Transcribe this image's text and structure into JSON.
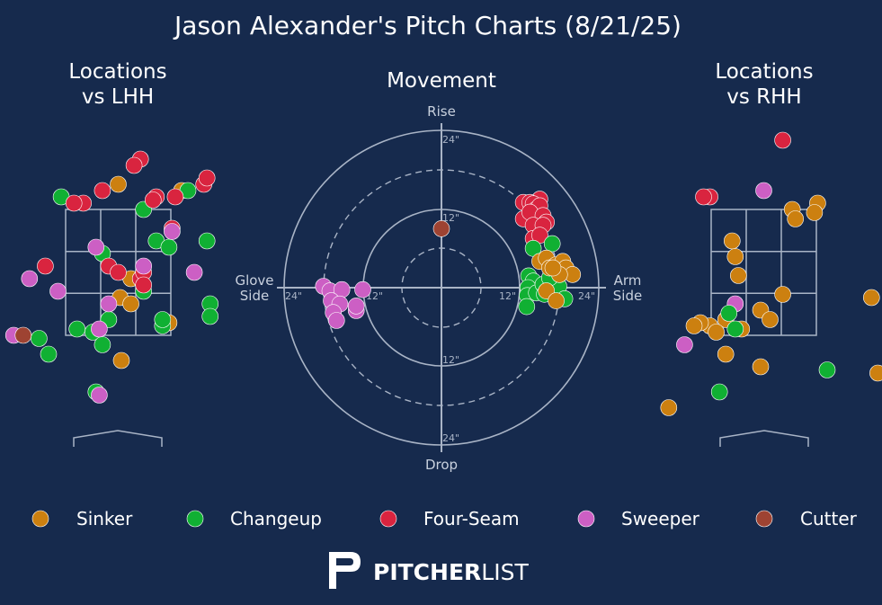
{
  "title": "Jason Alexander's Pitch Charts (8/21/25)",
  "colors": {
    "background": "#162a4d",
    "Sinker": "#cc8010",
    "Changeup": "#10b033",
    "Four-Seam": "#d9243f",
    "Sweeper": "#cc5fc4",
    "Cutter": "#9e4332",
    "guide": "#a9b4c6"
  },
  "brand": {
    "logo_text_bold": "PITCHER",
    "logo_text_light": "LIST"
  },
  "legend": [
    {
      "name": "Sinker"
    },
    {
      "name": "Changeup"
    },
    {
      "name": "Four-Seam"
    },
    {
      "name": "Sweeper"
    },
    {
      "name": "Cutter"
    }
  ],
  "chart_data": [
    {
      "type": "scatter",
      "panel": "lhh",
      "title_line1": "Locations",
      "title_line2": "vs LHH",
      "points": [
        {
          "pitch": "Sinker",
          "x": 0.0,
          "y": 3.9
        },
        {
          "pitch": "Sinker",
          "x": 1.0,
          "y": 3.8
        },
        {
          "pitch": "Sinker",
          "x": 0.2,
          "y": 2.4
        },
        {
          "pitch": "Sinker",
          "x": 0.03,
          "y": 2.1
        },
        {
          "pitch": "Sinker",
          "x": 0.2,
          "y": 2.0
        },
        {
          "pitch": "Sinker",
          "x": 0.8,
          "y": 1.7
        },
        {
          "pitch": "Sinker",
          "x": 0.05,
          "y": 1.1
        },
        {
          "pitch": "Changeup",
          "x": -0.9,
          "y": 3.7
        },
        {
          "pitch": "Changeup",
          "x": 0.4,
          "y": 3.5
        },
        {
          "pitch": "Changeup",
          "x": 1.1,
          "y": 3.8
        },
        {
          "pitch": "Changeup",
          "x": 0.6,
          "y": 3.0
        },
        {
          "pitch": "Changeup",
          "x": 0.8,
          "y": 2.9
        },
        {
          "pitch": "Changeup",
          "x": 1.4,
          "y": 3.0
        },
        {
          "pitch": "Changeup",
          "x": -0.25,
          "y": 2.8
        },
        {
          "pitch": "Changeup",
          "x": -0.15,
          "y": 1.75
        },
        {
          "pitch": "Changeup",
          "x": 0.4,
          "y": 2.2
        },
        {
          "pitch": "Changeup",
          "x": 1.45,
          "y": 2.0
        },
        {
          "pitch": "Changeup",
          "x": -0.4,
          "y": 1.55
        },
        {
          "pitch": "Changeup",
          "x": -0.65,
          "y": 1.6
        },
        {
          "pitch": "Changeup",
          "x": -1.25,
          "y": 1.45
        },
        {
          "pitch": "Changeup",
          "x": -0.25,
          "y": 1.35
        },
        {
          "pitch": "Changeup",
          "x": -1.1,
          "y": 1.2
        },
        {
          "pitch": "Changeup",
          "x": 0.7,
          "y": 1.65
        },
        {
          "pitch": "Changeup",
          "x": 0.7,
          "y": 1.75
        },
        {
          "pitch": "Changeup",
          "x": 1.45,
          "y": 1.8
        },
        {
          "pitch": "Changeup",
          "x": -0.35,
          "y": 0.6
        },
        {
          "pitch": "Four-Seam",
          "x": 0.35,
          "y": 4.3
        },
        {
          "pitch": "Four-Seam",
          "x": 0.25,
          "y": 4.2
        },
        {
          "pitch": "Four-Seam",
          "x": -0.25,
          "y": 3.8
        },
        {
          "pitch": "Four-Seam",
          "x": -0.55,
          "y": 3.6
        },
        {
          "pitch": "Four-Seam",
          "x": -0.7,
          "y": 3.6
        },
        {
          "pitch": "Four-Seam",
          "x": 0.6,
          "y": 3.7
        },
        {
          "pitch": "Four-Seam",
          "x": 0.55,
          "y": 3.65
        },
        {
          "pitch": "Four-Seam",
          "x": 0.9,
          "y": 3.7
        },
        {
          "pitch": "Four-Seam",
          "x": 1.35,
          "y": 3.9
        },
        {
          "pitch": "Four-Seam",
          "x": 1.4,
          "y": 4.0
        },
        {
          "pitch": "Four-Seam",
          "x": 0.85,
          "y": 3.2
        },
        {
          "pitch": "Four-Seam",
          "x": -1.15,
          "y": 2.6
        },
        {
          "pitch": "Four-Seam",
          "x": -0.15,
          "y": 2.6
        },
        {
          "pitch": "Four-Seam",
          "x": 0.0,
          "y": 2.5
        },
        {
          "pitch": "Four-Seam",
          "x": 0.35,
          "y": 2.4
        },
        {
          "pitch": "Four-Seam",
          "x": 0.4,
          "y": 2.5
        },
        {
          "pitch": "Four-Seam",
          "x": 0.4,
          "y": 2.3
        },
        {
          "pitch": "Sweeper",
          "x": 0.85,
          "y": 3.15
        },
        {
          "pitch": "Sweeper",
          "x": -0.35,
          "y": 2.9
        },
        {
          "pitch": "Sweeper",
          "x": 0.4,
          "y": 2.6
        },
        {
          "pitch": "Sweeper",
          "x": 1.2,
          "y": 2.5
        },
        {
          "pitch": "Sweeper",
          "x": -1.4,
          "y": 2.4
        },
        {
          "pitch": "Sweeper",
          "x": -0.95,
          "y": 2.2
        },
        {
          "pitch": "Sweeper",
          "x": -0.15,
          "y": 2.0
        },
        {
          "pitch": "Sweeper",
          "x": -0.3,
          "y": 1.6
        },
        {
          "pitch": "Sweeper",
          "x": -1.65,
          "y": 1.5
        },
        {
          "pitch": "Sweeper",
          "x": -0.3,
          "y": 0.55
        },
        {
          "pitch": "Cutter",
          "x": -1.5,
          "y": 1.5
        }
      ]
    },
    {
      "type": "scatter",
      "panel": "movement",
      "title": "Movement",
      "labels": {
        "top": "Rise",
        "bottom": "Drop",
        "left_line1": "Glove",
        "left_line2": "Side",
        "right_line1": "Arm",
        "right_line2": "Side"
      },
      "rings": [
        "12\"",
        "24\""
      ],
      "xlim": [
        -24,
        24
      ],
      "ylim": [
        -24,
        24
      ],
      "points": [
        {
          "pitch": "Four-Seam",
          "x": 15.0,
          "y": 13.5
        },
        {
          "pitch": "Four-Seam",
          "x": 12.5,
          "y": 13.0
        },
        {
          "pitch": "Four-Seam",
          "x": 13.5,
          "y": 13.0
        },
        {
          "pitch": "Four-Seam",
          "x": 14.0,
          "y": 12.8
        },
        {
          "pitch": "Four-Seam",
          "x": 14.5,
          "y": 12.0
        },
        {
          "pitch": "Four-Seam",
          "x": 15.0,
          "y": 12.5
        },
        {
          "pitch": "Four-Seam",
          "x": 12.5,
          "y": 10.5
        },
        {
          "pitch": "Four-Seam",
          "x": 13.5,
          "y": 11.5
        },
        {
          "pitch": "Four-Seam",
          "x": 15.5,
          "y": 11.0
        },
        {
          "pitch": "Four-Seam",
          "x": 16.0,
          "y": 10.0
        },
        {
          "pitch": "Four-Seam",
          "x": 14.8,
          "y": 9.0
        },
        {
          "pitch": "Four-Seam",
          "x": 14.0,
          "y": 9.5
        },
        {
          "pitch": "Four-Seam",
          "x": 15.5,
          "y": 9.5
        },
        {
          "pitch": "Four-Seam",
          "x": 14.0,
          "y": 7.5
        },
        {
          "pitch": "Four-Seam",
          "x": 15.0,
          "y": 8.0
        },
        {
          "pitch": "Changeup",
          "x": 14.0,
          "y": 6.0
        },
        {
          "pitch": "Changeup",
          "x": 16.9,
          "y": 6.7
        },
        {
          "pitch": "Changeup",
          "x": 13.3,
          "y": 1.8
        },
        {
          "pitch": "Changeup",
          "x": 14.0,
          "y": 1.0
        },
        {
          "pitch": "Changeup",
          "x": 13.2,
          "y": 0.0
        },
        {
          "pitch": "Changeup",
          "x": 13.1,
          "y": -1.2
        },
        {
          "pitch": "Changeup",
          "x": 13.0,
          "y": -2.9
        },
        {
          "pitch": "Changeup",
          "x": 14.5,
          "y": -0.8
        },
        {
          "pitch": "Changeup",
          "x": 15.5,
          "y": 0.5
        },
        {
          "pitch": "Changeup",
          "x": 15.7,
          "y": -1.0
        },
        {
          "pitch": "Changeup",
          "x": 17.9,
          "y": 0.2
        },
        {
          "pitch": "Changeup",
          "x": 18.8,
          "y": -1.7
        },
        {
          "pitch": "Changeup",
          "x": 16.5,
          "y": 1.5
        },
        {
          "pitch": "Sinker",
          "x": 15.0,
          "y": 4.0
        },
        {
          "pitch": "Sinker",
          "x": 16.0,
          "y": 4.5
        },
        {
          "pitch": "Sinker",
          "x": 16.5,
          "y": 3.0
        },
        {
          "pitch": "Sinker",
          "x": 17.5,
          "y": 3.5
        },
        {
          "pitch": "Sinker",
          "x": 18.5,
          "y": 4.0
        },
        {
          "pitch": "Sinker",
          "x": 19.0,
          "y": 3.0
        },
        {
          "pitch": "Sinker",
          "x": 20.0,
          "y": 2.0
        },
        {
          "pitch": "Sinker",
          "x": 18.0,
          "y": 2.0
        },
        {
          "pitch": "Sinker",
          "x": 17.0,
          "y": 3.0
        },
        {
          "pitch": "Sinker",
          "x": 16.0,
          "y": -0.5
        },
        {
          "pitch": "Sinker",
          "x": 17.5,
          "y": -2.0
        },
        {
          "pitch": "Sweeper",
          "x": -18.0,
          "y": 0.2
        },
        {
          "pitch": "Sweeper",
          "x": -17.0,
          "y": -0.5
        },
        {
          "pitch": "Sweeper",
          "x": -15.2,
          "y": -0.3
        },
        {
          "pitch": "Sweeper",
          "x": -12.0,
          "y": -0.3
        },
        {
          "pitch": "Sweeper",
          "x": -16.8,
          "y": -2.0
        },
        {
          "pitch": "Sweeper",
          "x": -15.5,
          "y": -2.5
        },
        {
          "pitch": "Sweeper",
          "x": -16.5,
          "y": -3.8
        },
        {
          "pitch": "Sweeper",
          "x": -13.0,
          "y": -3.5
        },
        {
          "pitch": "Sweeper",
          "x": -13.0,
          "y": -2.8
        },
        {
          "pitch": "Sweeper",
          "x": -16.0,
          "y": -5.0
        },
        {
          "pitch": "Cutter",
          "x": 0.0,
          "y": 9.0
        }
      ]
    },
    {
      "type": "scatter",
      "panel": "rhh",
      "title_line1": "Locations",
      "title_line2": "vs RHH",
      "points": [
        {
          "pitch": "Four-Seam",
          "x": 0.3,
          "y": 4.6
        },
        {
          "pitch": "Four-Seam",
          "x": -0.85,
          "y": 3.7
        },
        {
          "pitch": "Four-Seam",
          "x": -0.95,
          "y": 3.7
        },
        {
          "pitch": "Sweeper",
          "x": 0.0,
          "y": 3.8
        },
        {
          "pitch": "Sweeper",
          "x": -0.45,
          "y": 2.0
        },
        {
          "pitch": "Sweeper",
          "x": -1.25,
          "y": 1.35
        },
        {
          "pitch": "Sinker",
          "x": 0.85,
          "y": 3.6
        },
        {
          "pitch": "Sinker",
          "x": 0.45,
          "y": 3.5
        },
        {
          "pitch": "Sinker",
          "x": 0.8,
          "y": 3.45
        },
        {
          "pitch": "Sinker",
          "x": 0.5,
          "y": 3.35
        },
        {
          "pitch": "Sinker",
          "x": -0.5,
          "y": 3.0
        },
        {
          "pitch": "Sinker",
          "x": -0.45,
          "y": 2.75
        },
        {
          "pitch": "Sinker",
          "x": -0.4,
          "y": 2.45
        },
        {
          "pitch": "Sinker",
          "x": 0.3,
          "y": 2.15
        },
        {
          "pitch": "Sinker",
          "x": -0.05,
          "y": 1.9
        },
        {
          "pitch": "Sinker",
          "x": 0.1,
          "y": 1.75
        },
        {
          "pitch": "Sinker",
          "x": -0.6,
          "y": 1.75
        },
        {
          "pitch": "Sinker",
          "x": -0.85,
          "y": 1.65
        },
        {
          "pitch": "Sinker",
          "x": -1.0,
          "y": 1.7
        },
        {
          "pitch": "Sinker",
          "x": -1.1,
          "y": 1.65
        },
        {
          "pitch": "Sinker",
          "x": -0.75,
          "y": 1.55
        },
        {
          "pitch": "Sinker",
          "x": -0.35,
          "y": 1.6
        },
        {
          "pitch": "Sinker",
          "x": -0.6,
          "y": 1.2
        },
        {
          "pitch": "Sinker",
          "x": -0.05,
          "y": 1.0
        },
        {
          "pitch": "Sinker",
          "x": 1.7,
          "y": 2.1
        },
        {
          "pitch": "Sinker",
          "x": 1.8,
          "y": 0.9
        },
        {
          "pitch": "Sinker",
          "x": -1.5,
          "y": 0.35
        },
        {
          "pitch": "Changeup",
          "x": -0.55,
          "y": 1.85
        },
        {
          "pitch": "Changeup",
          "x": -0.45,
          "y": 1.6
        },
        {
          "pitch": "Changeup",
          "x": 1.0,
          "y": 0.95
        },
        {
          "pitch": "Changeup",
          "x": -0.7,
          "y": 0.6
        }
      ]
    }
  ]
}
